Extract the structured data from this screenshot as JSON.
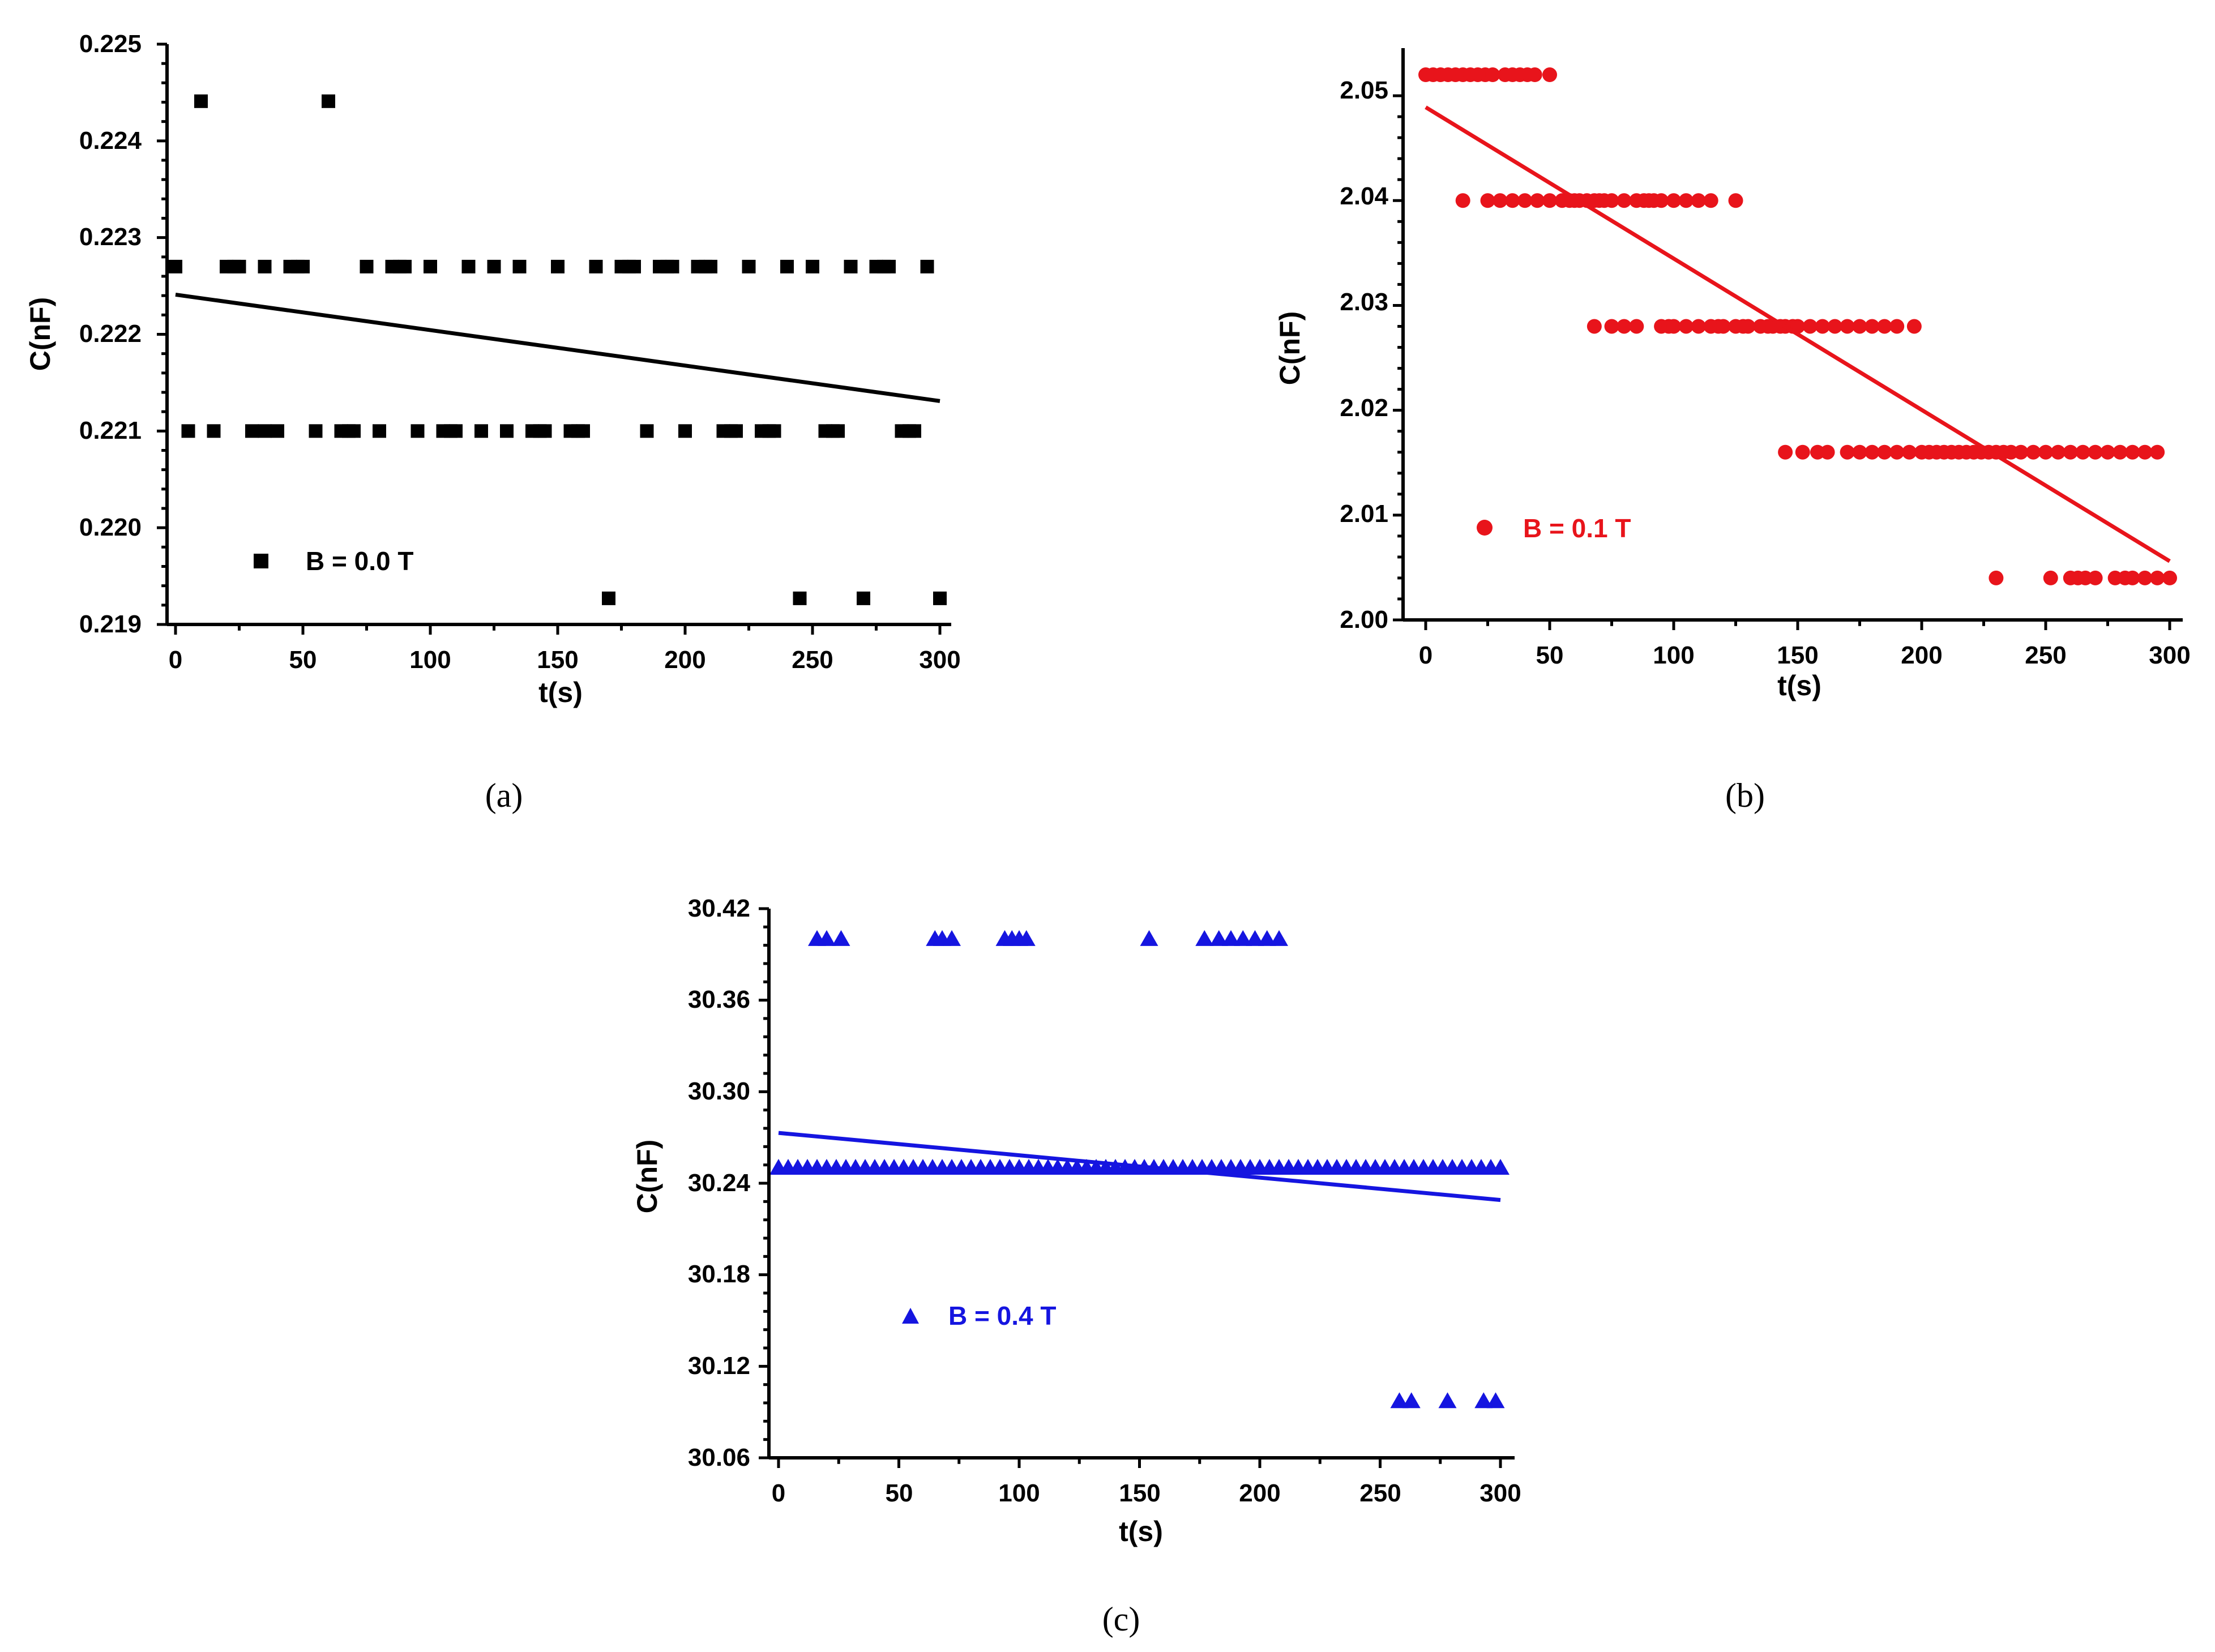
{
  "chart_data": [
    {
      "id": "a",
      "type": "scatter",
      "caption": "(a)",
      "color": "#000000",
      "marker": "square",
      "legend": "B = 0.0 T",
      "xlabel": "t(s)",
      "ylabel": "C(nF)",
      "xlim": [
        -3,
        303
      ],
      "ylim": [
        0.219,
        0.225
      ],
      "xticks": [
        0,
        50,
        100,
        150,
        200,
        250,
        300
      ],
      "xticklabels": [
        "0",
        "50",
        "100",
        "150",
        "200",
        "250",
        "300"
      ],
      "yticks": [
        0.219,
        0.22,
        0.221,
        0.222,
        0.223,
        0.224,
        0.225
      ],
      "yticklabels": [
        "0.219",
        "0.220",
        "0.221",
        "0.222",
        "0.223",
        "0.224",
        "0.225"
      ],
      "fit_line": {
        "x": [
          0,
          300
        ],
        "y": [
          0.22241,
          0.22131
        ]
      },
      "series": [
        {
          "name": "0.2244",
          "y": 0.22441,
          "x": [
            10,
            60
          ]
        },
        {
          "name": "0.2227",
          "y": 0.2227,
          "x": [
            0,
            20,
            23,
            25,
            35,
            45,
            48,
            50,
            75,
            85,
            88,
            90,
            100,
            115,
            125,
            135,
            150,
            165,
            175,
            178,
            180,
            190,
            193,
            195,
            205,
            208,
            210,
            225,
            240,
            250,
            265,
            275,
            278,
            280,
            295
          ]
        },
        {
          "name": "0.2210",
          "y": 0.221,
          "x": [
            5,
            15,
            30,
            35,
            40,
            55,
            65,
            68,
            70,
            80,
            95,
            105,
            108,
            110,
            120,
            130,
            140,
            143,
            145,
            155,
            158,
            160,
            185,
            200,
            215,
            218,
            220,
            230,
            233,
            235,
            255,
            258,
            260,
            285,
            288,
            290
          ]
        },
        {
          "name": "0.2193",
          "y": 0.21927,
          "x": [
            170,
            245,
            270,
            300
          ]
        }
      ]
    },
    {
      "id": "b",
      "type": "scatter",
      "caption": "(b)",
      "color": "#e8141b",
      "marker": "circle",
      "legend": "B = 0.1 T",
      "xlabel": "t(s)",
      "ylabel": "C(nF)",
      "xlim": [
        -3,
        303
      ],
      "ylim": [
        2.0,
        2.054
      ],
      "xticks": [
        0,
        50,
        100,
        150,
        200,
        250,
        300
      ],
      "xticklabels": [
        "0",
        "50",
        "100",
        "150",
        "200",
        "250",
        "300"
      ],
      "yticks": [
        2.0,
        2.01,
        2.02,
        2.03,
        2.04,
        2.05
      ],
      "yticklabels": [
        "2.00",
        "2.01",
        "2.02",
        "2.03",
        "2.04",
        "2.05"
      ],
      "fit_line": {
        "x": [
          0,
          300
        ],
        "y": [
          2.0489,
          2.0056
        ]
      },
      "series": [
        {
          "name": "2.052",
          "y": 2.052,
          "x": [
            0,
            3,
            6,
            9,
            12,
            15,
            18,
            21,
            24,
            27,
            32,
            35,
            38,
            41,
            44,
            50
          ]
        },
        {
          "name": "2.040",
          "y": 2.04,
          "x": [
            15,
            25,
            30,
            35,
            40,
            45,
            50,
            55,
            58,
            60,
            62,
            65,
            68,
            70,
            72,
            75,
            80,
            85,
            88,
            90,
            92,
            95,
            100,
            105,
            110,
            115,
            125
          ]
        },
        {
          "name": "2.028",
          "y": 2.028,
          "x": [
            68,
            75,
            80,
            85,
            95,
            98,
            100,
            105,
            110,
            115,
            118,
            120,
            125,
            128,
            130,
            135,
            138,
            140,
            143,
            145,
            148,
            150,
            155,
            160,
            165,
            170,
            175,
            180,
            185,
            190,
            197
          ]
        },
        {
          "name": "2.016",
          "y": 2.016,
          "x": [
            145,
            152,
            158,
            162,
            170,
            175,
            180,
            185,
            190,
            195,
            200,
            203,
            206,
            209,
            212,
            215,
            218,
            221,
            224,
            227,
            230,
            233,
            236,
            240,
            245,
            250,
            255,
            260,
            265,
            270,
            275,
            280,
            285,
            290,
            295
          ]
        },
        {
          "name": "2.004",
          "y": 2.004,
          "x": [
            230,
            252,
            260,
            263,
            266,
            270,
            278,
            282,
            285,
            290,
            295,
            300
          ]
        }
      ]
    },
    {
      "id": "c",
      "type": "scatter",
      "caption": "(c)",
      "color": "#1515e0",
      "marker": "triangle",
      "legend": "B = 0.4 T",
      "xlabel": "t(s)",
      "ylabel": "C(nF)",
      "xlim": [
        -3,
        303
      ],
      "ylim": [
        30.06,
        30.42
      ],
      "xticks": [
        0,
        50,
        100,
        150,
        200,
        250,
        300
      ],
      "xticklabels": [
        "0",
        "50",
        "100",
        "150",
        "200",
        "250",
        "300"
      ],
      "yticks": [
        30.06,
        30.12,
        30.18,
        30.24,
        30.3,
        30.36,
        30.42
      ],
      "yticklabels": [
        "30.06",
        "30.12",
        "30.18",
        "30.24",
        "30.30",
        "30.36",
        "30.42"
      ],
      "fit_line": {
        "x": [
          0,
          300
        ],
        "y": [
          30.273,
          30.229
        ]
      },
      "series": [
        {
          "name": "30.40",
          "y": 30.4,
          "x": [
            16,
            20,
            26,
            65,
            68,
            72,
            94,
            97,
            100,
            103,
            154,
            177,
            183,
            188,
            193,
            198,
            203,
            208
          ]
        },
        {
          "name": "30.25",
          "y": 30.25,
          "x": [
            0,
            4,
            8,
            12,
            16,
            20,
            24,
            28,
            32,
            36,
            40,
            44,
            48,
            52,
            56,
            60,
            64,
            68,
            72,
            76,
            80,
            84,
            88,
            92,
            96,
            100,
            104,
            108,
            112,
            116,
            120,
            124,
            128,
            132,
            136,
            140,
            144,
            148,
            152,
            156,
            160,
            164,
            168,
            172,
            176,
            180,
            184,
            188,
            192,
            196,
            200,
            204,
            208,
            212,
            216,
            220,
            224,
            228,
            232,
            236,
            240,
            244,
            248,
            252,
            256,
            260,
            264,
            268,
            272,
            276,
            280,
            284,
            288,
            292,
            296,
            300
          ]
        },
        {
          "name": "30.10",
          "y": 30.097,
          "x": [
            258,
            263,
            278,
            293,
            298
          ]
        }
      ]
    }
  ]
}
